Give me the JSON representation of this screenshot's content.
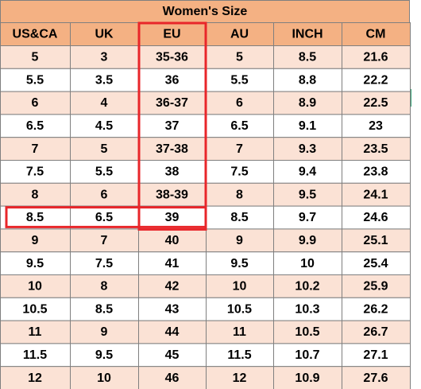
{
  "title": "Women's Size",
  "table": {
    "header": [
      "US&CA",
      "UK",
      "EU",
      "AU",
      "INCH",
      "CM"
    ],
    "rows": [
      [
        "5",
        "3",
        "35-36",
        "5",
        "8.5",
        "21.6"
      ],
      [
        "5.5",
        "3.5",
        "36",
        "5.5",
        "8.8",
        "22.2"
      ],
      [
        "6",
        "4",
        "36-37",
        "6",
        "8.9",
        "22.5"
      ],
      [
        "6.5",
        "4.5",
        "37",
        "6.5",
        "9.1",
        "23"
      ],
      [
        "7",
        "5",
        "37-38",
        "7",
        "9.3",
        "23.5"
      ],
      [
        "7.5",
        "5.5",
        "38",
        "7.5",
        "9.4",
        "23.8"
      ],
      [
        "8",
        "6",
        "38-39",
        "8",
        "9.5",
        "24.1"
      ],
      [
        "8.5",
        "6.5",
        "39",
        "8.5",
        "9.7",
        "24.6"
      ],
      [
        "9",
        "7",
        "40",
        "9",
        "9.9",
        "25.1"
      ],
      [
        "9.5",
        "7.5",
        "41",
        "9.5",
        "10",
        "25.4"
      ],
      [
        "10",
        "8",
        "42",
        "10",
        "10.2",
        "25.9"
      ],
      [
        "10.5",
        "8.5",
        "43",
        "10.5",
        "10.3",
        "26.2"
      ],
      [
        "11",
        "9",
        "44",
        "11",
        "10.5",
        "26.7"
      ],
      [
        "11.5",
        "9.5",
        "45",
        "11.5",
        "10.7",
        "27.1"
      ],
      [
        "12",
        "10",
        "46",
        "12",
        "10.9",
        "27.6"
      ]
    ]
  }
}
